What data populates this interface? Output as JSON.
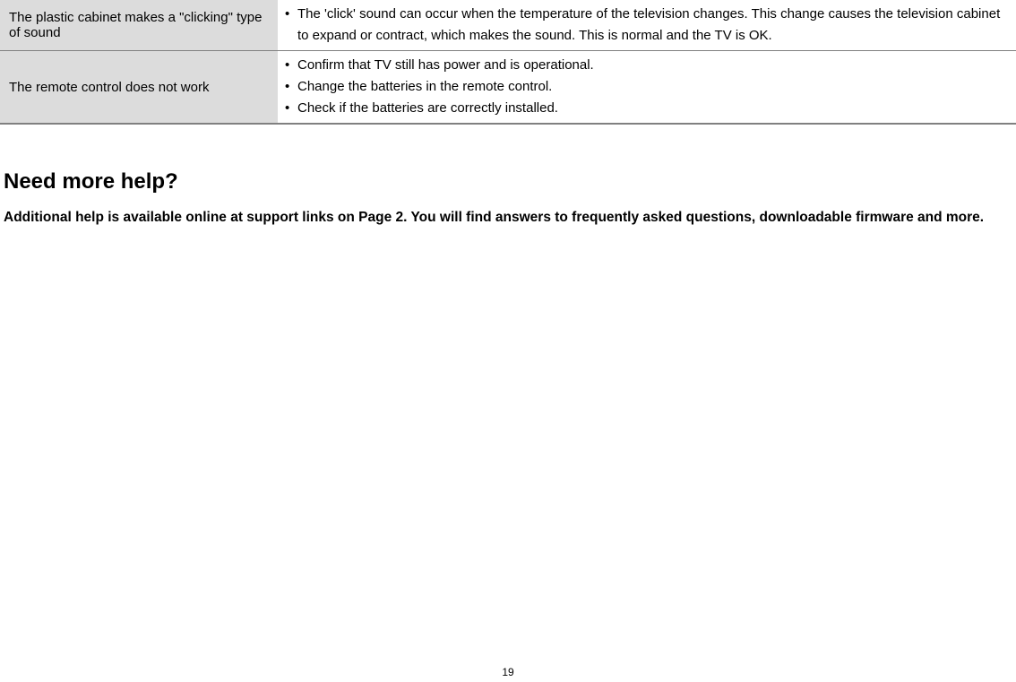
{
  "table": {
    "rows": [
      {
        "issue": "The plastic cabinet makes a \"clicking\" type of sound",
        "solutions": [
          "The 'click' sound can occur when the temperature of the television changes. This change causes the television cabinet to expand or contract, which makes the sound. This is normal and the TV is OK."
        ]
      },
      {
        "issue": "The remote control does not work",
        "solutions": [
          "Confirm that TV still has power and is operational.",
          "Change the batteries in the remote control.",
          "Check if the batteries are correctly installed."
        ]
      }
    ]
  },
  "heading": "Need more help?",
  "subtext": "Additional help is available online at support links on Page 2. You will find answers to frequently asked questions, downloadable firmware and more.",
  "pageNumber": "19",
  "colors": {
    "background": "#ffffff",
    "cellBackground": "#dcdcdc",
    "text": "#000000",
    "border": "#808080"
  },
  "typography": {
    "bodyFontSize": 15,
    "headingFontSize": 24,
    "subtextFontSize": 15.5,
    "pageNumberFontSize": 12,
    "fontFamily": "Arial, Helvetica, sans-serif"
  }
}
